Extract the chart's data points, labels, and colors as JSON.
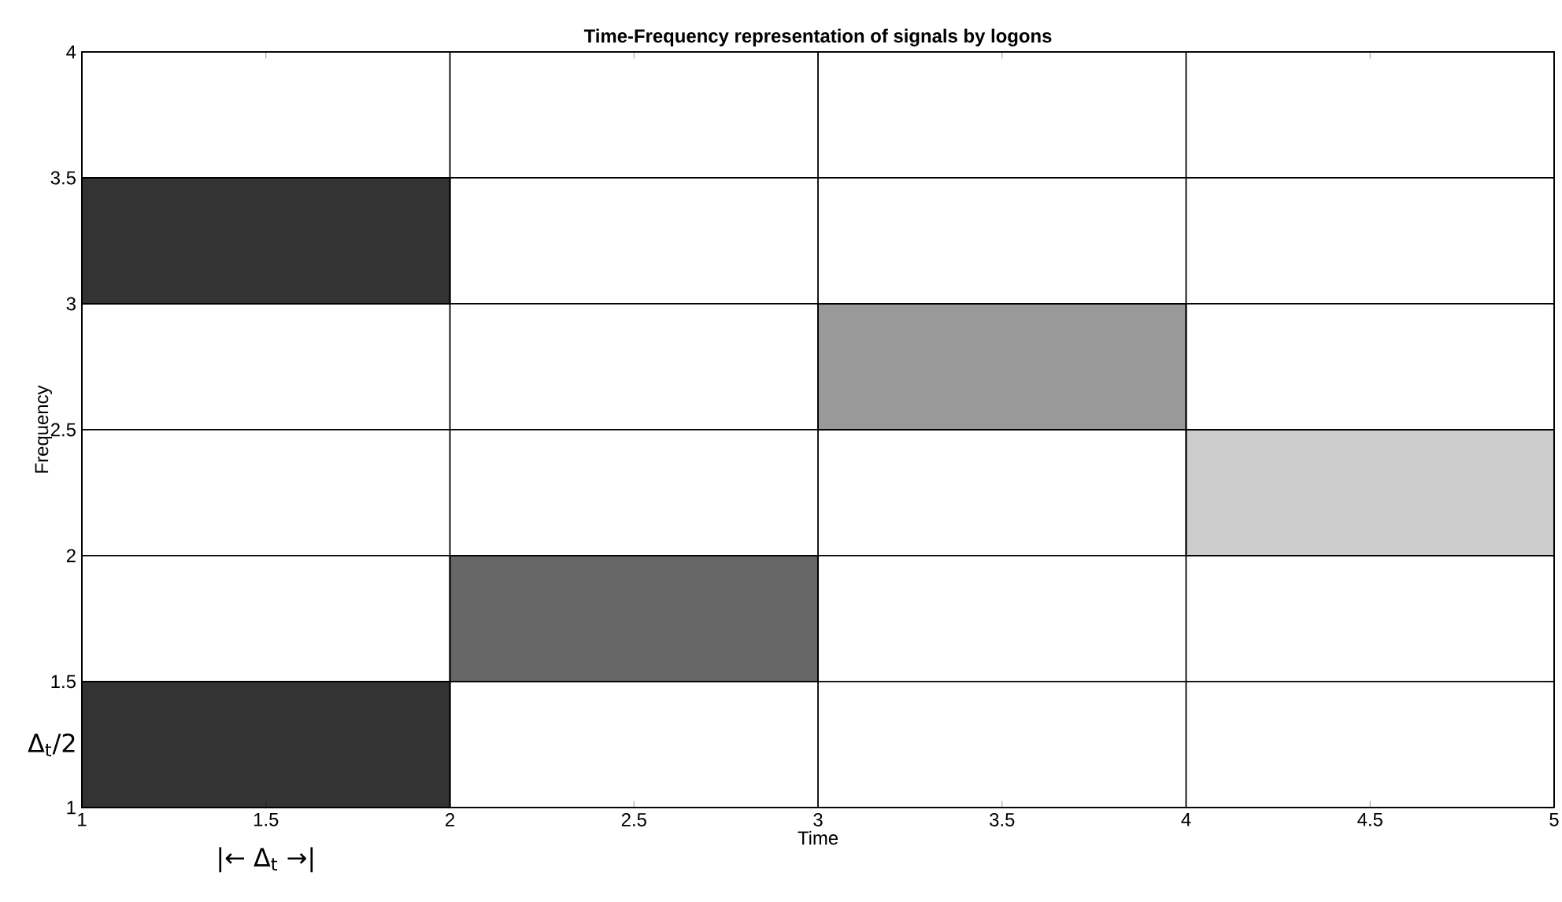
{
  "chart_data": {
    "type": "bar",
    "orientation": "horizontal",
    "title": "Time-Frequency representation of signals by logons",
    "xlabel": "Time",
    "ylabel": "Frequency",
    "x": [
      1.25,
      1.75,
      2.25,
      2.75,
      3.25
    ],
    "base": [
      1,
      2,
      4,
      3,
      1
    ],
    "values": [
      1,
      1,
      1,
      1,
      1
    ],
    "colors": [
      "#333333",
      "#666666",
      "#cccccc",
      "#999999",
      "#333333"
    ],
    "xlim": [
      1,
      5
    ],
    "ylim": [
      1,
      4
    ],
    "xticks": [
      1,
      1.5,
      2,
      2.5,
      3,
      3.5,
      4,
      4.5,
      5
    ],
    "yticks": [
      1,
      1.5,
      2,
      2.5,
      3,
      3.5,
      4
    ],
    "grid": true,
    "annotations": [
      "Δ$_{t}$/2",
      "|← Δ$_{t}$ →|"
    ]
  }
}
